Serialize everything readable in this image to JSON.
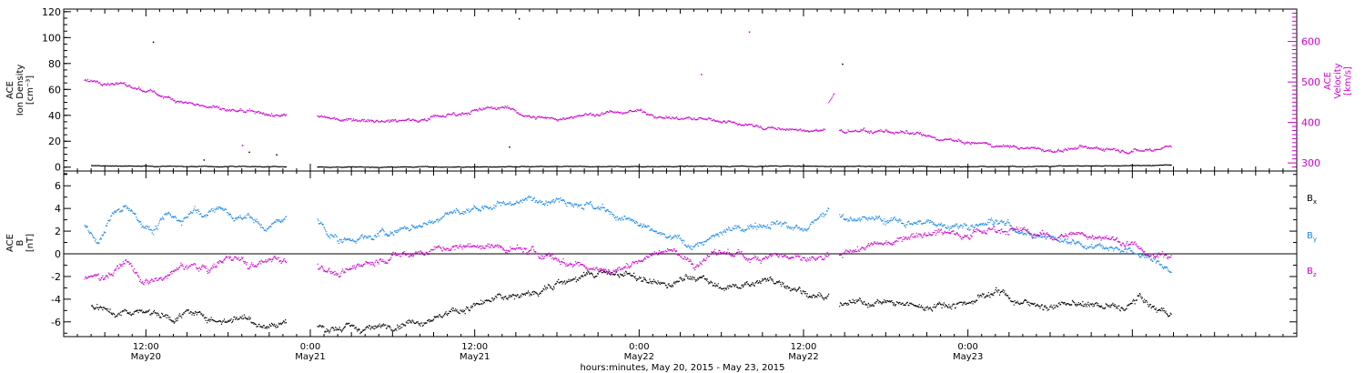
{
  "chart_data": [
    {
      "type": "scatter",
      "panel": "ion-density-velocity",
      "ylabel_left": [
        "ACE",
        "Ion Density",
        "[cm⁻³]"
      ],
      "ylabel_right": [
        "ACE",
        "Velocity",
        "[km/s]"
      ],
      "ylim_left": [
        -3,
        122
      ],
      "ylim_right": [
        280,
        680
      ],
      "yticks_left": [
        0,
        20,
        40,
        60,
        80,
        100,
        120
      ],
      "yticks_right": [
        300,
        400,
        500,
        600
      ],
      "left_color": "#000000",
      "right_color": "#cc00cc",
      "series": [
        {
          "axis": "left",
          "color": "#000000",
          "segments": [
            {
              "x": [
                8.0,
                10.0,
                12.0,
                14.0,
                16.0,
                18.0,
                20.0,
                22.2
              ],
              "y": [
                1.5,
                1.3,
                1.0,
                1.1,
                0.8,
                0.9,
                0.7,
                0.8
              ]
            },
            {
              "x": [
                24.5,
                28,
                32,
                36,
                40,
                44,
                48,
                52,
                56,
                60,
                64,
                68,
                72,
                76,
                80,
                84,
                86.8
              ],
              "y": [
                0.5,
                0.4,
                0.6,
                0.5,
                0.7,
                0.8,
                0.9,
                1.0,
                1.2,
                1.1,
                1.0,
                0.9,
                0.8,
                1.0,
                1.3,
                1.6,
                2.0
              ]
            }
          ],
          "outliers": [
            [
              12.5,
              97
            ],
            [
              39.2,
              115
            ],
            [
              38.5,
              16
            ],
            [
              62.8,
              80
            ],
            [
              19.5,
              12
            ],
            [
              21.5,
              10
            ],
            [
              16.2,
              6
            ]
          ]
        },
        {
          "axis": "right",
          "color": "#cc00cc",
          "segments": [
            {
              "x": [
                7.5,
                9,
                10.5,
                12,
                13.5,
                15,
                16.5,
                18,
                19.5,
                21,
                22.2
              ],
              "y": [
                505,
                500,
                492,
                478,
                465,
                450,
                440,
                430,
                425,
                420,
                418
              ]
            },
            {
              "x": [
                24.5,
                26,
                28,
                30,
                32,
                34,
                36,
                38,
                40,
                42,
                44,
                46,
                48,
                50,
                52,
                54,
                56,
                58,
                60,
                61.5
              ],
              "y": [
                415,
                410,
                408,
                405,
                410,
                420,
                430,
                440,
                415,
                410,
                420,
                425,
                430,
                412,
                410,
                405,
                395,
                385,
                380,
                382
              ]
            },
            {
              "x": [
                61.8,
                62.2
              ],
              "y": [
                450,
                470
              ]
            },
            {
              "x": [
                62.6,
                64,
                66,
                68,
                70,
                72,
                74,
                76,
                78,
                80,
                82,
                84,
                85.5,
                86.8
              ],
              "y": [
                380,
                378,
                380,
                372,
                360,
                350,
                345,
                340,
                330,
                338,
                338,
                332,
                335,
                345
              ]
            }
          ],
          "outliers": [
            [
              56,
              625
            ],
            [
              52.5,
              520
            ],
            [
              19.0,
              345
            ]
          ]
        }
      ]
    },
    {
      "type": "scatter",
      "panel": "magnetic-field",
      "ylabel_left": [
        "ACE",
        "B",
        "[nT]"
      ],
      "ylim": [
        -7.3,
        7.3
      ],
      "yticks": [
        -6,
        -4,
        -2,
        0,
        2,
        4,
        6
      ],
      "zero_line": true,
      "legend": [
        {
          "label": "Bx",
          "base": "B",
          "sub": "x",
          "color": "#000000"
        },
        {
          "label": "By",
          "base": "B",
          "sub": "y",
          "color": "#1a88e6"
        },
        {
          "label": "Bz",
          "base": "B",
          "sub": "z",
          "color": "#cc00cc"
        }
      ],
      "series": [
        {
          "name": "Bx",
          "color": "#000000",
          "segments": [
            {
              "x": [
                8,
                9,
                10,
                11,
                12,
                13,
                14,
                15,
                16,
                17,
                18,
                19,
                20,
                21,
                22.2
              ],
              "y": [
                -4.6,
                -4.9,
                -5.2,
                -5.0,
                -4.9,
                -5.3,
                -5.6,
                -5.2,
                -5.4,
                -5.8,
                -5.7,
                -5.5,
                -6.0,
                -6.3,
                -6.0
              ]
            },
            {
              "x": [
                24.5,
                26,
                28,
                30,
                32,
                34,
                36,
                38,
                40,
                42,
                44,
                46,
                48,
                50,
                52,
                54,
                56,
                58,
                60,
                61.8
              ],
              "y": [
                -6.4,
                -6.5,
                -6.6,
                -6.2,
                -5.8,
                -5.3,
                -4.5,
                -3.8,
                -3.5,
                -2.5,
                -2.0,
                -1.5,
                -2.2,
                -2.8,
                -1.9,
                -3.0,
                -2.6,
                -2.2,
                -3.3,
                -4.0
              ]
            },
            {
              "x": [
                62.6,
                64,
                66,
                68,
                70,
                72,
                74,
                76,
                78,
                80,
                82,
                83.5,
                84.5,
                85.5,
                86.8
              ],
              "y": [
                -4.5,
                -4.3,
                -4.2,
                -4.6,
                -4.5,
                -4.2,
                -3.2,
                -4.3,
                -4.6,
                -4.4,
                -4.6,
                -4.8,
                -3.8,
                -4.8,
                -5.2
              ]
            }
          ]
        },
        {
          "name": "By",
          "color": "#1a88e6",
          "segments": [
            {
              "x": [
                7.5,
                8.5,
                9.5,
                10.5,
                11.5,
                12.5,
                13.5,
                14.5,
                15.5,
                16.5,
                17.5,
                18.5,
                19.5,
                20.5,
                21.5,
                22.2
              ],
              "y": [
                2.5,
                1.0,
                3.5,
                4.5,
                3.0,
                2.0,
                3.5,
                3.0,
                4.0,
                3.5,
                4.2,
                3.0,
                3.5,
                2.2,
                2.8,
                3.0
              ]
            },
            {
              "x": [
                24.5,
                26,
                28,
                30,
                32,
                34,
                36,
                38,
                40,
                42,
                44,
                46,
                48,
                50,
                52,
                54,
                56,
                58,
                60,
                61.8
              ],
              "y": [
                3.0,
                1.2,
                1.5,
                2.0,
                2.5,
                3.5,
                4.0,
                4.5,
                4.8,
                5.0,
                4.5,
                3.5,
                2.5,
                1.5,
                0.8,
                1.8,
                2.5,
                3.0,
                2.0,
                3.8
              ]
            },
            {
              "x": [
                62.6,
                64,
                66,
                68,
                70,
                72,
                74,
                76,
                78,
                80,
                82,
                83.5,
                84.5,
                85.5,
                86.8
              ],
              "y": [
                3.5,
                3.2,
                3.0,
                2.8,
                2.7,
                2.5,
                3.0,
                2.0,
                1.5,
                1.0,
                0.8,
                0.3,
                0.0,
                -0.5,
                -1.5
              ]
            }
          ]
        },
        {
          "name": "Bz",
          "color": "#cc00cc",
          "segments": [
            {
              "x": [
                7.5,
                8.5,
                9.5,
                10.5,
                11.5,
                12.5,
                13.5,
                14.5,
                15.5,
                16.5,
                17.5,
                18.5,
                19.5,
                20.5,
                21.5,
                22.2
              ],
              "y": [
                -2.2,
                -2.0,
                -1.5,
                -0.5,
                -2.0,
                -2.5,
                -2.0,
                -1.2,
                -1.0,
                -1.5,
                -0.5,
                -0.3,
                -1.2,
                -0.8,
                -0.2,
                -0.5
              ]
            },
            {
              "x": [
                24.5,
                26,
                28,
                30,
                32,
                34,
                36,
                38,
                40,
                42,
                44,
                46,
                48,
                50,
                52,
                54,
                56,
                58,
                60,
                61.8
              ],
              "y": [
                -1.0,
                -1.8,
                -0.8,
                -0.2,
                0.2,
                0.5,
                0.8,
                0.5,
                0.3,
                -0.5,
                -1.0,
                -1.5,
                -0.5,
                0.5,
                -0.8,
                0.2,
                -0.3,
                0.0,
                -0.5,
                -0.5
              ]
            },
            {
              "x": [
                62.6,
                64,
                66,
                68,
                70,
                72,
                74,
                76,
                78,
                80,
                82,
                83.5,
                84.5,
                85.5,
                86.8
              ],
              "y": [
                -0.2,
                0.5,
                1.0,
                1.8,
                2.0,
                1.8,
                2.3,
                2.0,
                1.5,
                1.8,
                1.5,
                1.0,
                0.5,
                -0.2,
                0.0
              ]
            }
          ]
        }
      ]
    }
  ],
  "x_axis": {
    "xlim": [
      6.0,
      96.0
    ],
    "ticks": [
      {
        "x": 12,
        "time": "12:00",
        "date": "May20"
      },
      {
        "x": 24,
        "time": "0:00",
        "date": "May21"
      },
      {
        "x": 36,
        "time": "12:00",
        "date": "May21"
      },
      {
        "x": 48,
        "time": "0:00",
        "date": "May22"
      },
      {
        "x": 60,
        "time": "12:00",
        "date": "May22"
      },
      {
        "x": 72,
        "time": "0:00",
        "date": "May23"
      }
    ],
    "minor_tick_step": 1,
    "label": "hours:minutes, May 20, 2015 - May 23, 2015"
  }
}
